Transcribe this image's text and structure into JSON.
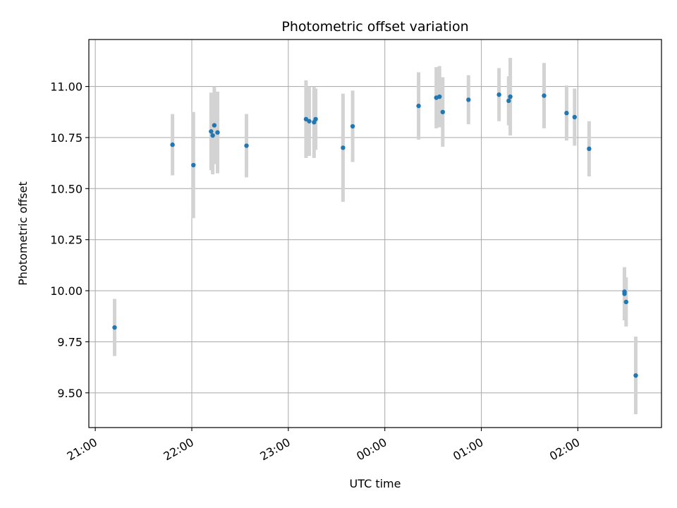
{
  "chart_data": {
    "type": "scatter",
    "title": "Photometric offset variation",
    "xlabel": "UTC time",
    "ylabel": "Photometric offset",
    "x_ticks": [
      "21:00",
      "22:00",
      "23:00",
      "00:00",
      "01:00",
      "02:00"
    ],
    "y_ticks": [
      "9.50",
      "9.75",
      "10.00",
      "10.25",
      "10.50",
      "10.75",
      "11.00"
    ],
    "ylim": [
      9.33,
      11.23
    ],
    "xlim": [
      "20:56",
      "02:52"
    ],
    "grid": true,
    "marker_color": "#1f77b4",
    "errorbar_color": "#d3d3d3",
    "series": [
      {
        "points": [
          {
            "x": "21:12",
            "y": 9.82,
            "err": 0.14
          },
          {
            "x": "21:48",
            "y": 10.715,
            "err": 0.15
          },
          {
            "x": "22:01",
            "y": 10.615,
            "err": 0.26
          },
          {
            "x": "22:12",
            "y": 10.78,
            "err": 0.19
          },
          {
            "x": "22:13",
            "y": 10.76,
            "err": 0.19
          },
          {
            "x": "22:14",
            "y": 10.81,
            "err": 0.19
          },
          {
            "x": "22:16",
            "y": 10.775,
            "err": 0.2
          },
          {
            "x": "22:34",
            "y": 10.71,
            "err": 0.155
          },
          {
            "x": "23:11",
            "y": 10.84,
            "err": 0.19
          },
          {
            "x": "23:13",
            "y": 10.83,
            "err": 0.17
          },
          {
            "x": "23:16",
            "y": 10.825,
            "err": 0.175
          },
          {
            "x": "23:17",
            "y": 10.84,
            "err": 0.15
          },
          {
            "x": "23:34",
            "y": 10.7,
            "err": 0.265
          },
          {
            "x": "23:40",
            "y": 10.805,
            "err": 0.175
          },
          {
            "x": "00:21",
            "y": 10.905,
            "err": 0.165
          },
          {
            "x": "00:32",
            "y": 10.945,
            "err": 0.15
          },
          {
            "x": "00:34",
            "y": 10.95,
            "err": 0.15
          },
          {
            "x": "00:36",
            "y": 10.875,
            "err": 0.17
          },
          {
            "x": "00:52",
            "y": 10.935,
            "err": 0.12
          },
          {
            "x": "01:11",
            "y": 10.96,
            "err": 0.13
          },
          {
            "x": "01:17",
            "y": 10.93,
            "err": 0.12
          },
          {
            "x": "01:18",
            "y": 10.95,
            "err": 0.19
          },
          {
            "x": "01:39",
            "y": 10.955,
            "err": 0.16
          },
          {
            "x": "01:53",
            "y": 10.87,
            "err": 0.135
          },
          {
            "x": "01:58",
            "y": 10.85,
            "err": 0.14
          },
          {
            "x": "02:07",
            "y": 10.695,
            "err": 0.135
          },
          {
            "x": "02:29",
            "y": 9.985,
            "err": 0.13
          },
          {
            "x": "02:29",
            "y": 9.995,
            "err": 0.12
          },
          {
            "x": "02:30",
            "y": 9.945,
            "err": 0.12
          },
          {
            "x": "02:36",
            "y": 9.585,
            "err": 0.19
          }
        ]
      }
    ]
  }
}
